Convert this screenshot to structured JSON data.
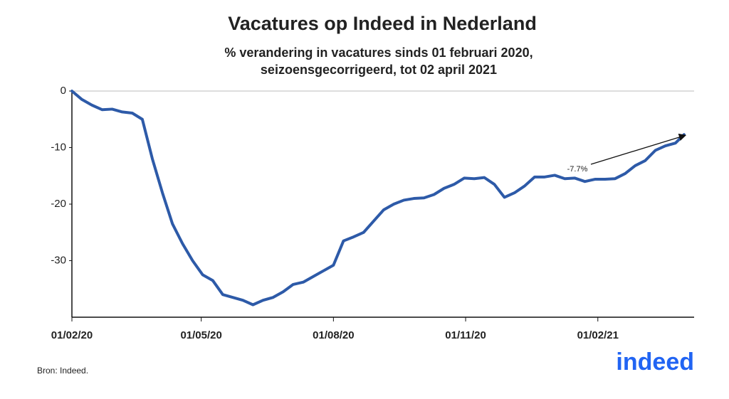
{
  "chart_data": {
    "type": "line",
    "title": "Vacatures op Indeed in Nederland",
    "subtitle": [
      "% verandering in vacatures sinds 01 februari 2020,",
      "seizoensgecorrigeerd, tot 02 april 2021"
    ],
    "x": [
      "01/02/20",
      "08/02/20",
      "15/02/20",
      "22/02/20",
      "29/02/20",
      "07/03/20",
      "14/03/20",
      "21/03/20",
      "28/03/20",
      "04/04/20",
      "11/04/20",
      "18/04/20",
      "25/04/20",
      "02/05/20",
      "09/05/20",
      "16/05/20",
      "23/05/20",
      "30/05/20",
      "06/06/20",
      "13/06/20",
      "20/06/20",
      "27/06/20",
      "04/07/20",
      "11/07/20",
      "18/07/20",
      "25/07/20",
      "01/08/20",
      "08/08/20",
      "15/08/20",
      "22/08/20",
      "29/08/20",
      "05/09/20",
      "12/09/20",
      "19/09/20",
      "26/09/20",
      "03/10/20",
      "10/10/20",
      "17/10/20",
      "24/10/20",
      "31/10/20",
      "07/11/20",
      "14/11/20",
      "21/11/20",
      "28/11/20",
      "05/12/20",
      "12/12/20",
      "19/12/20",
      "26/12/20",
      "02/01/21",
      "09/01/21",
      "16/01/21",
      "23/01/21",
      "30/01/21",
      "06/02/21",
      "13/02/21",
      "20/02/21",
      "27/02/21",
      "06/03/21",
      "13/03/21",
      "20/03/21",
      "27/03/21",
      "02/04/21"
    ],
    "values": [
      0,
      -1.5,
      -2.5,
      -3.3,
      -3.2,
      -3.7,
      -3.9,
      -5,
      -12,
      -18,
      -23.5,
      -27,
      -30,
      -32.5,
      -33.5,
      -36,
      -36.5,
      -37,
      -37.8,
      -37,
      -36.5,
      -35.5,
      -34.2,
      -33.8,
      -32.8,
      -31.8,
      -30.8,
      -26.5,
      -25.8,
      -25,
      -23,
      -21,
      -20,
      -19.3,
      -19,
      -18.9,
      -18.3,
      -17.2,
      -16.5,
      -15.4,
      -15.5,
      -15.3,
      -16.5,
      -18.8,
      -18,
      -16.8,
      -15.2,
      -15.2,
      -14.9,
      -15.5,
      -15.4,
      -16,
      -15.6,
      -15.6,
      -15.5,
      -14.6,
      -13.2,
      -12.3,
      -10.5,
      -9.7,
      -9.2,
      -7.7
    ],
    "color": "#2d5aa8",
    "xlim": [
      "01/02/20",
      "09/04/21"
    ],
    "xticks": [
      "01/02/20",
      "01/05/20",
      "01/08/20",
      "01/11/20",
      "01/02/21"
    ],
    "ylim": [
      -40,
      0
    ],
    "yticks": [
      0,
      -10,
      -20,
      -30
    ],
    "grid": false,
    "annotation": "-7.7%",
    "source": "Bron: Indeed.",
    "logo": "indeed"
  }
}
